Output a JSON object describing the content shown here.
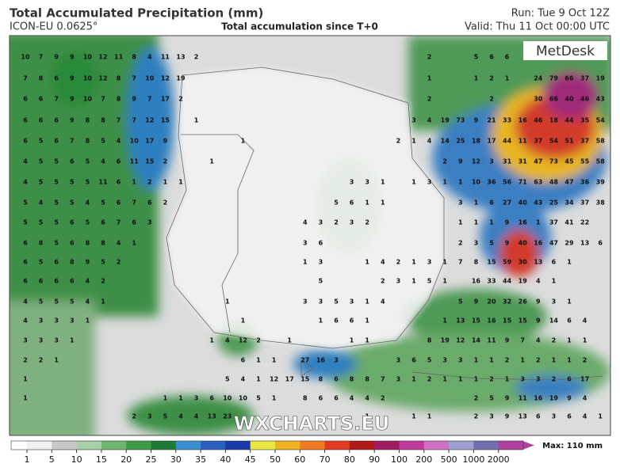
{
  "header": {
    "title": "Total Accumulated Precipitation (mm)",
    "model": "ICON-EU 0.0625°",
    "subtitle": "Total accumulation since T+0",
    "run": "Run: Tue 9 Oct 12Z",
    "valid": "Valid: Thu 11 Oct 00:00 UTC",
    "logo": "MetDesk",
    "watermark": "WXCHARTS.EU"
  },
  "map": {
    "labels": [
      [
        [
          10,
          7,
          9,
          9,
          10,
          12,
          11,
          8,
          4,
          11,
          13,
          2
        ],
        [
          2
        ],
        [
          5,
          6,
          6
        ]
      ],
      [
        [
          7,
          8,
          6,
          9,
          10,
          12,
          8,
          7,
          10,
          12,
          19
        ],
        [
          1
        ],
        [
          1,
          2,
          1
        ],
        [
          24,
          79,
          66,
          37,
          19
        ]
      ],
      [
        [
          6,
          6,
          7,
          9,
          10,
          7,
          8,
          9,
          7,
          17,
          2
        ],
        [
          2
        ],
        [
          2
        ],
        [
          30,
          66,
          40,
          46,
          43
        ]
      ],
      [
        [
          6,
          6,
          6,
          9,
          8,
          8,
          7,
          7,
          12,
          15
        ],
        [
          1
        ],
        [
          3,
          4,
          19,
          73,
          9,
          21,
          33,
          16,
          46,
          18,
          44,
          35,
          54
        ]
      ],
      [
        [
          6,
          5,
          6,
          7,
          8,
          5,
          4,
          10,
          17,
          9
        ],
        [
          1
        ],
        [
          2,
          1
        ],
        [
          4,
          14,
          25,
          18,
          17,
          44,
          11,
          37,
          54,
          51,
          37,
          58
        ]
      ],
      [
        [
          4,
          5,
          5,
          6,
          5,
          4,
          6,
          11,
          15,
          2
        ],
        [
          1
        ],
        [
          2,
          9,
          12,
          3,
          31,
          31,
          47,
          73,
          45,
          55,
          58
        ]
      ],
      [
        [
          4,
          5,
          5,
          5,
          5,
          11,
          6,
          1,
          2,
          1,
          1
        ],
        [
          3,
          3,
          1
        ],
        [
          1,
          3,
          1,
          1,
          10,
          36,
          56,
          71,
          63,
          48,
          47,
          36,
          39
        ]
      ],
      [
        [
          5,
          4,
          5,
          5,
          4,
          5,
          6,
          7,
          6,
          2
        ],
        [
          5,
          6,
          1,
          1
        ],
        [
          3,
          1,
          6,
          27,
          40,
          43,
          25,
          34,
          37,
          38
        ]
      ],
      [
        [
          5,
          5,
          5,
          6,
          5,
          6,
          7,
          6,
          3
        ],
        [
          4,
          3,
          2,
          3,
          2
        ],
        [
          1,
          1,
          1,
          9,
          16,
          1,
          37,
          41,
          22
        ]
      ],
      [
        [
          6,
          8,
          5,
          6,
          8,
          8,
          4,
          1
        ],
        [
          3,
          6
        ],
        [
          2,
          3,
          5,
          9,
          40,
          16,
          47,
          29,
          13,
          6
        ]
      ],
      [
        [
          6,
          5,
          6,
          8,
          9,
          5,
          2
        ],
        [
          1,
          3
        ],
        [
          1,
          4,
          2,
          1,
          3,
          1
        ],
        [
          7,
          8,
          15,
          59,
          30,
          13,
          6,
          1
        ]
      ],
      [
        [
          6,
          6,
          6,
          6,
          4,
          2
        ],
        [
          5
        ],
        [
          2,
          3,
          1,
          5,
          1
        ],
        [
          16,
          33,
          44,
          19,
          4,
          1
        ]
      ],
      [
        [
          4,
          5,
          5,
          5,
          4,
          1
        ],
        [
          1
        ],
        [
          3,
          3,
          5,
          3,
          1,
          4
        ],
        [
          5,
          9,
          20,
          32,
          26,
          9,
          3,
          1
        ]
      ],
      [
        [
          4,
          3,
          3,
          3,
          1
        ],
        [
          1
        ],
        [
          1,
          6,
          6,
          1
        ],
        [
          1,
          13,
          15,
          16,
          15,
          15,
          9,
          14,
          6,
          4
        ]
      ],
      [
        [
          3,
          3,
          3,
          1
        ],
        [
          1,
          4,
          12,
          2
        ],
        [
          1
        ],
        [
          1,
          1
        ],
        [
          8,
          19,
          12,
          14,
          11,
          9,
          7,
          4,
          2,
          1,
          1
        ]
      ],
      [
        [
          2,
          2,
          1
        ],
        [
          6,
          1,
          1
        ],
        [
          27,
          16,
          3
        ],
        [
          3,
          6,
          5,
          3,
          3,
          1,
          1,
          2,
          1,
          2,
          1,
          1,
          2
        ]
      ],
      [
        [
          1
        ],
        [
          5,
          4,
          1,
          12,
          17,
          15,
          8,
          6,
          8,
          8,
          7,
          3,
          1,
          2,
          1,
          1,
          1,
          2,
          1,
          3,
          3,
          2,
          6,
          17
        ]
      ],
      [
        [
          1
        ],
        [
          1,
          1,
          3,
          6,
          10,
          10,
          5,
          1
        ],
        [
          8,
          6,
          6,
          4,
          4,
          2
        ],
        [
          2,
          5,
          9,
          11,
          16,
          19,
          9,
          4
        ]
      ],
      [
        [
          2,
          3,
          5,
          4,
          4,
          13,
          23
        ],
        [
          1
        ],
        [
          1,
          1
        ],
        [
          2,
          3,
          9,
          13,
          6,
          3,
          6,
          4,
          1
        ]
      ]
    ]
  },
  "colorbar": {
    "ticks": [
      1,
      5,
      10,
      15,
      20,
      25,
      30,
      35,
      40,
      45,
      50,
      60,
      70,
      80,
      90,
      100,
      200,
      500,
      1000,
      2000
    ],
    "colors": [
      "#f0f0f0",
      "#c8c8c8",
      "#a8cfa8",
      "#6fb56f",
      "#3d9a45",
      "#1f7a35",
      "#3a8fd0",
      "#2a5fc0",
      "#1a3aa8",
      "#e8e840",
      "#f0b020",
      "#f07a20",
      "#e03a20",
      "#b01a1a",
      "#a01a60",
      "#c03a9a",
      "#d070c0",
      "#a0a0d0",
      "#7070b0",
      "#b040a0"
    ],
    "max_label": "Max: 110 mm"
  }
}
